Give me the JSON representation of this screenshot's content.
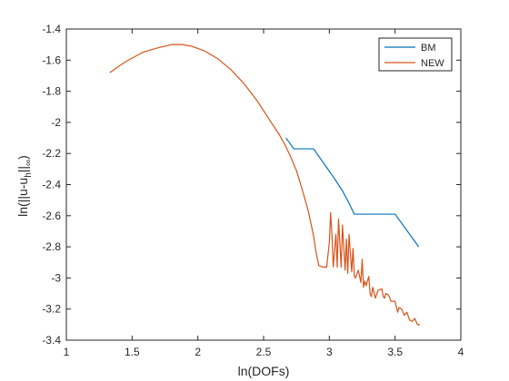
{
  "chart_data": {
    "type": "line",
    "title": "",
    "xlabel": "ln(DOFs)",
    "ylabel": {
      "main": "ln(||u-u",
      "sub1": "h",
      "mid": "||",
      "sub2": "∞",
      "end": ")"
    },
    "xlim": [
      1,
      4
    ],
    "ylim": [
      -3.4,
      -1.4
    ],
    "xticks": [
      1,
      1.5,
      2,
      2.5,
      3,
      3.5,
      4
    ],
    "yticks": [
      -1.4,
      -1.6,
      -1.8,
      -2,
      -2.2,
      -2.4,
      -2.6,
      -2.8,
      -3,
      -3.2,
      -3.4
    ],
    "xtick_labels": [
      "1",
      "1.5",
      "2",
      "2.5",
      "3",
      "3.5",
      "4"
    ],
    "ytick_labels": [
      "-1.4",
      "-1.6",
      "-1.8",
      "-2",
      "-2.2",
      "-2.4",
      "-2.6",
      "-2.8",
      "-3",
      "-3.2",
      "-3.4"
    ],
    "grid": false,
    "legend": {
      "placement": "top-right"
    },
    "series": [
      {
        "name": "BM",
        "color": "#0072BD",
        "points": [
          [
            2.67,
            -2.1
          ],
          [
            2.73,
            -2.17
          ],
          [
            2.88,
            -2.17
          ],
          [
            2.98,
            -2.29
          ],
          [
            3.03,
            -2.35
          ],
          [
            3.1,
            -2.44
          ],
          [
            3.15,
            -2.52
          ],
          [
            3.19,
            -2.59
          ],
          [
            3.5,
            -2.59
          ],
          [
            3.68,
            -2.8
          ]
        ]
      },
      {
        "name": "NEW",
        "color": "#D95319",
        "points": [
          [
            1.33,
            -1.68
          ],
          [
            1.45,
            -1.61
          ],
          [
            1.58,
            -1.55
          ],
          [
            1.7,
            -1.52
          ],
          [
            1.8,
            -1.5
          ],
          [
            1.88,
            -1.5
          ],
          [
            1.95,
            -1.51
          ],
          [
            2.05,
            -1.54
          ],
          [
            2.15,
            -1.59
          ],
          [
            2.25,
            -1.66
          ],
          [
            2.35,
            -1.75
          ],
          [
            2.45,
            -1.86
          ],
          [
            2.55,
            -1.99
          ],
          [
            2.62,
            -2.08
          ],
          [
            2.66,
            -2.14
          ],
          [
            2.7,
            -2.21
          ],
          [
            2.75,
            -2.31
          ],
          [
            2.8,
            -2.45
          ],
          [
            2.84,
            -2.57
          ],
          [
            2.88,
            -2.73
          ],
          [
            2.9,
            -2.84
          ],
          [
            2.92,
            -2.92
          ],
          [
            2.95,
            -2.93
          ],
          [
            2.98,
            -2.93
          ],
          [
            3.0,
            -2.77
          ],
          [
            3.01,
            -2.58
          ],
          [
            3.02,
            -2.73
          ],
          [
            3.03,
            -2.93
          ],
          [
            3.05,
            -2.72
          ],
          [
            3.06,
            -2.93
          ],
          [
            3.07,
            -2.62
          ],
          [
            3.09,
            -2.93
          ],
          [
            3.1,
            -2.66
          ],
          [
            3.12,
            -2.95
          ],
          [
            3.13,
            -2.75
          ],
          [
            3.14,
            -2.97
          ],
          [
            3.15,
            -2.72
          ],
          [
            3.17,
            -2.96
          ],
          [
            3.18,
            -2.81
          ],
          [
            3.19,
            -2.99
          ],
          [
            3.2,
            -3.0
          ],
          [
            3.22,
            -2.95
          ],
          [
            3.24,
            -3.03
          ],
          [
            3.25,
            -2.88
          ],
          [
            3.26,
            -3.06
          ],
          [
            3.27,
            -3.02
          ],
          [
            3.28,
            -3.05
          ],
          [
            3.3,
            -2.99
          ],
          [
            3.31,
            -3.1
          ],
          [
            3.32,
            -3.12
          ],
          [
            3.33,
            -3.06
          ],
          [
            3.35,
            -3.13
          ],
          [
            3.37,
            -3.08
          ],
          [
            3.4,
            -3.07
          ],
          [
            3.41,
            -3.12
          ],
          [
            3.42,
            -3.13
          ],
          [
            3.43,
            -3.1
          ],
          [
            3.45,
            -3.11
          ],
          [
            3.47,
            -3.15
          ],
          [
            3.5,
            -3.15
          ],
          [
            3.52,
            -3.22
          ],
          [
            3.53,
            -3.19
          ],
          [
            3.55,
            -3.2
          ],
          [
            3.57,
            -3.24
          ],
          [
            3.59,
            -3.22
          ],
          [
            3.61,
            -3.27
          ],
          [
            3.63,
            -3.28
          ],
          [
            3.65,
            -3.26
          ],
          [
            3.67,
            -3.3
          ],
          [
            3.69,
            -3.3
          ]
        ]
      }
    ]
  }
}
